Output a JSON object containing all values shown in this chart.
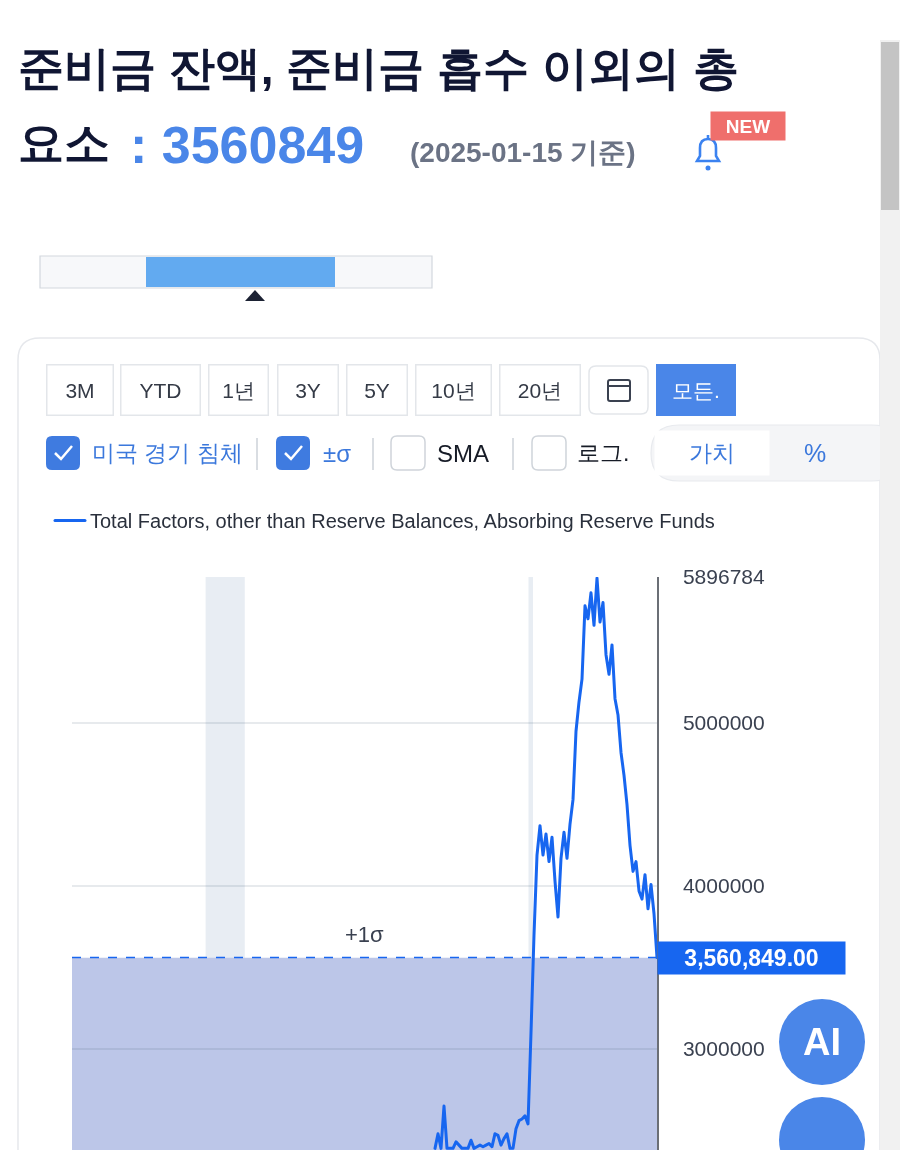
{
  "chart_data": {
    "type": "line",
    "title": "준비금 잔액, 준비금 흡수 이외의 총 요소",
    "subtitle": "(2025-01-15 기준)",
    "categories": [
      null,
      null,
      null,
      null,
      null,
      null,
      null,
      null,
      null,
      null,
      null,
      null,
      null,
      null,
      null,
      null,
      null,
      null,
      null,
      null,
      null,
      null,
      null,
      null,
      null,
      null,
      null,
      null,
      null,
      null,
      null,
      null,
      null,
      null,
      null,
      null,
      null,
      null,
      null,
      null,
      null,
      null,
      null,
      null,
      null,
      null,
      null,
      null,
      null,
      null,
      null,
      null,
      null,
      null,
      null,
      null,
      null,
      null,
      null,
      null,
      null,
      null,
      null,
      null,
      null,
      null,
      null,
      null,
      null,
      null,
      null,
      null,
      null,
      null,
      null,
      null,
      null,
      null,
      null,
      null,
      null,
      null,
      null,
      null,
      null,
      null,
      null,
      null,
      null,
      null,
      null,
      null,
      null,
      null,
      null,
      null,
      null,
      null,
      null,
      null,
      null,
      null,
      null,
      null,
      null,
      null,
      null,
      null,
      null,
      null,
      null,
      null,
      null,
      null,
      null,
      null,
      null,
      null,
      null,
      null,
      null,
      null,
      null,
      null,
      null,
      null,
      null,
      null,
      null,
      null,
      null,
      null,
      null,
      null,
      null,
      null,
      null,
      null,
      null,
      null,
      null,
      null,
      null,
      null,
      null,
      null,
      null,
      null,
      null,
      null,
      null,
      null,
      null,
      null,
      null,
      null,
      null,
      null,
      null,
      null,
      null,
      null,
      null,
      null,
      null,
      null,
      null,
      null,
      null,
      null,
      null,
      null,
      null,
      null,
      null,
      null,
      null,
      null,
      null,
      null,
      null,
      null,
      null,
      null,
      null,
      null,
      null,
      null,
      null,
      null,
      null,
      null,
      null,
      null,
      null,
      null
    ],
    "series": [
      {
        "name": "Total Factors, other than Reserve Balances, Absorbing Reserve Funds",
        "color": "#1766f0",
        "values": [
          null,
          null,
          null,
          null,
          null,
          null,
          null,
          null,
          null,
          null,
          null,
          null,
          null,
          null,
          null,
          null,
          null,
          null,
          null,
          null,
          null,
          null,
          null,
          null,
          null,
          null,
          null,
          null,
          null,
          null,
          null,
          null,
          null,
          null,
          null,
          null,
          null,
          null,
          null,
          null,
          null,
          null,
          null,
          null,
          null,
          null,
          null,
          null,
          null,
          null,
          null,
          null,
          null,
          null,
          null,
          null,
          null,
          null,
          null,
          null,
          null,
          null,
          null,
          null,
          null,
          null,
          null,
          null,
          null,
          null,
          null,
          null,
          null,
          null,
          null,
          null,
          null,
          null,
          null,
          null,
          null,
          null,
          null,
          null,
          null,
          null,
          null,
          null,
          null,
          null,
          null,
          null,
          null,
          null,
          null,
          null,
          null,
          null,
          null,
          null,
          null,
          null,
          null,
          null,
          null,
          null,
          null,
          null,
          null,
          null,
          null,
          null,
          null,
          null,
          null,
          null,
          null,
          null,
          null,
          null,
          null,
          2390000,
          2480000,
          2390000,
          2650000,
          2390000,
          2390000,
          2390000,
          2430000,
          2410000,
          2390000,
          2390000,
          2390000,
          2440000,
          2390000,
          2400000,
          2410000,
          2400000,
          2410000,
          2420000,
          2400000,
          2480000,
          2470000,
          2410000,
          2450000,
          2480000,
          2390000,
          2390000,
          2510000,
          2560000,
          2570000,
          2590000,
          2540000,
          3100000,
          3700000,
          4190000,
          4370000,
          4190000,
          4320000,
          4150000,
          4300000,
          4030000,
          3810000,
          4170000,
          4330000,
          4170000,
          4380000,
          4530000,
          4950000,
          5130000,
          5270000,
          5720000,
          5640000,
          5800000,
          5600000,
          5890000,
          5620000,
          5740000,
          5420000,
          5300000,
          5480000,
          5150000,
          5050000,
          4820000,
          4680000,
          4500000,
          4250000,
          4090000,
          4150000,
          3970000,
          3920000,
          4070000,
          3860000,
          4010000,
          3830000,
          3560849
        ]
      }
    ],
    "ylim": [
      2380000,
      5896784
    ],
    "yticks": [
      3000000,
      4000000,
      5000000,
      5896784
    ],
    "tick_labels": "y",
    "grid": "y",
    "legend": "top left",
    "line_style": "solid",
    "ref_lines": [
      {
        "axis": "y",
        "value": 3560849,
        "label": "3,560,849.00",
        "color": "#1766f0",
        "line_style": "dashed"
      }
    ],
    "bands": [
      {
        "axis": "y",
        "from": 2380000,
        "to": 3560000,
        "label": "+1σ",
        "color": "#bcc6e8"
      }
    ],
    "annotations": [
      ": 3560849",
      "NEW",
      "3M",
      "YTD",
      "1년",
      "3Y",
      "5Y",
      "10년",
      "20년",
      "모든.",
      "미국 경기 침체",
      "±σ",
      "SMA",
      "로그.",
      "가치",
      "%",
      "AI"
    ]
  }
}
